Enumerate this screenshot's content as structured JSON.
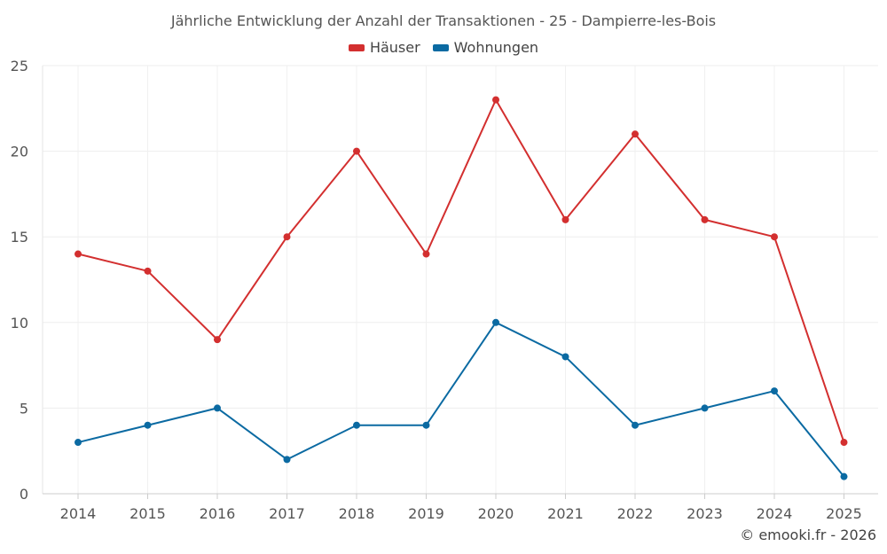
{
  "chart_data": {
    "type": "line",
    "title": "Jährliche Entwicklung der Anzahl der Transaktionen - 25 - Dampierre-les-Bois",
    "categories": [
      "2014",
      "2015",
      "2016",
      "2017",
      "2018",
      "2019",
      "2020",
      "2021",
      "2022",
      "2023",
      "2024",
      "2025"
    ],
    "series": [
      {
        "name": "Häuser",
        "color": "#d32f2f",
        "values": [
          14,
          13,
          9,
          15,
          20,
          14,
          23,
          16,
          21,
          16,
          15,
          3
        ]
      },
      {
        "name": "Wohnungen",
        "color": "#0b6aa2",
        "values": [
          3,
          4,
          5,
          2,
          4,
          4,
          10,
          8,
          4,
          5,
          6,
          1
        ]
      }
    ],
    "y_ticks": [
      "0",
      "5",
      "10",
      "15",
      "20",
      "25"
    ],
    "ylim": [
      0,
      25
    ],
    "xlabel": "",
    "ylabel": "",
    "grid": true,
    "legend": "top-center"
  },
  "credit": "© emooki.fr - 2026"
}
